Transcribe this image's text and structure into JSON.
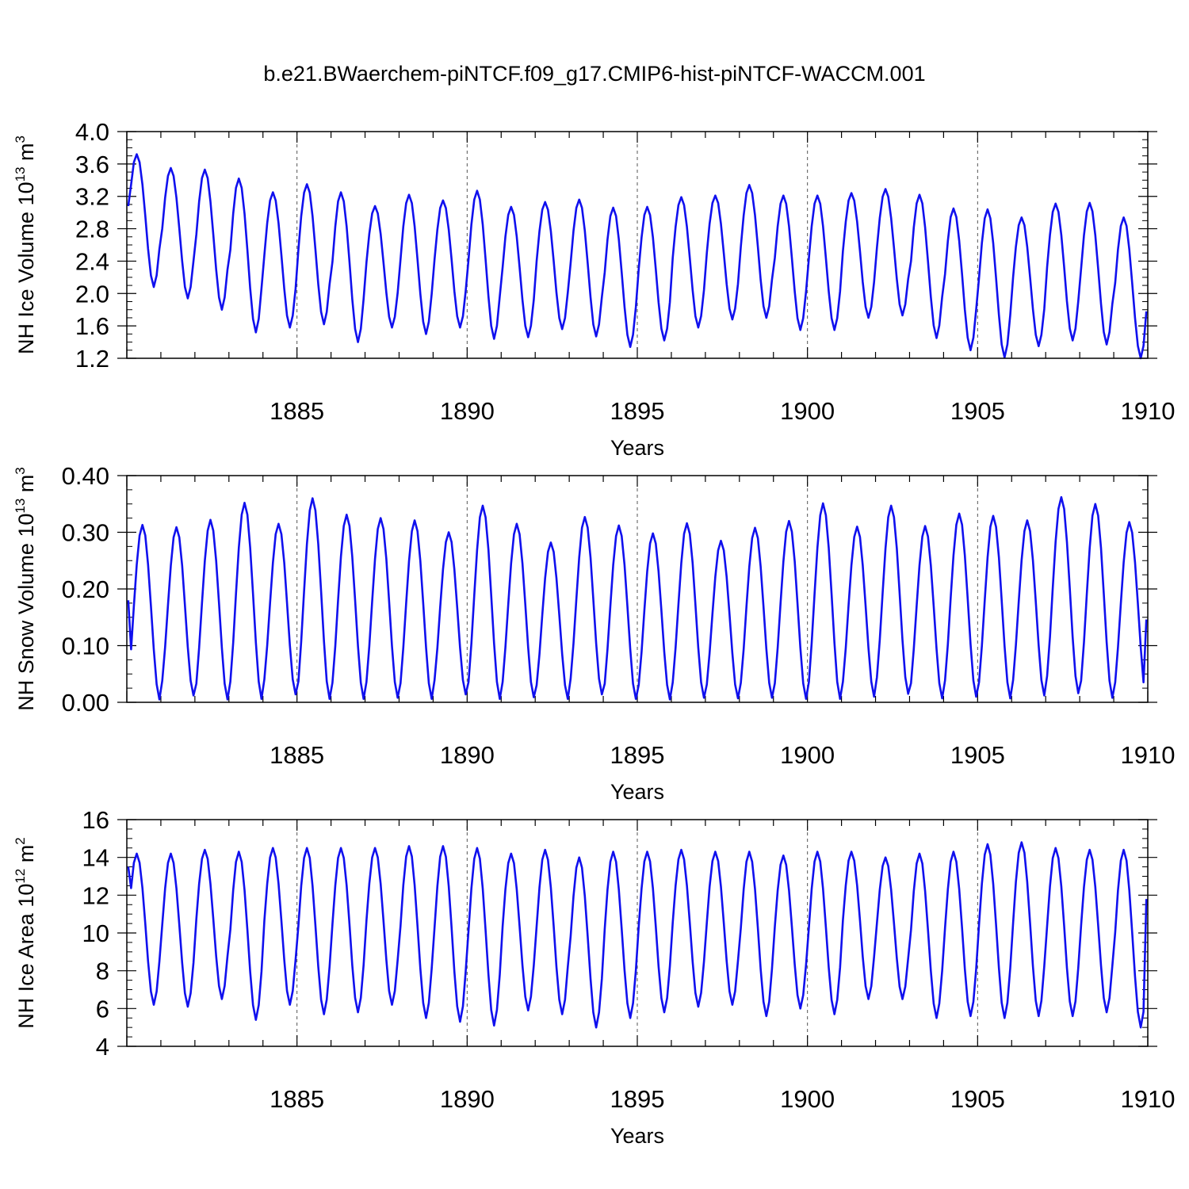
{
  "title": "b.e21.BWaerchem-piNTCF.f09_g17.CMIP6-hist-piNTCF-WACCM.001",
  "colors": {
    "line": "#1010ee",
    "axis": "#000000",
    "grid": "#555555"
  },
  "chart_data": [
    {
      "type": "line",
      "name": "nh-ice-volume",
      "ylabel": {
        "base": "NH Ice Volume 10",
        "exp": "13",
        "unit": " m",
        "unitexp": "3"
      },
      "xlabel": "Years",
      "xlim": [
        1880.0,
        1910.0
      ],
      "ylim": [
        1.2,
        4.0
      ],
      "yticks": [
        "1.2",
        "1.6",
        "2.0",
        "2.4",
        "2.8",
        "3.2",
        "3.6",
        "4.0"
      ],
      "xticks": [
        "1885",
        "1890",
        "1895",
        "1900",
        "1905",
        "1910"
      ],
      "xtick_values": [
        1885,
        1890,
        1895,
        1900,
        1905,
        1910
      ],
      "year_maxima": [
        3.72,
        3.55,
        3.53,
        3.42,
        3.25,
        3.35,
        3.25,
        3.08,
        3.22,
        3.15,
        3.27,
        3.07,
        3.13,
        3.16,
        3.06,
        3.07,
        3.19,
        3.21,
        3.34,
        3.21,
        3.21,
        3.24,
        3.29,
        3.22,
        3.05,
        3.04,
        2.94,
        3.11,
        3.12,
        2.94
      ],
      "year_minima": [
        2.08,
        1.94,
        1.8,
        1.52,
        1.58,
        1.62,
        1.4,
        1.58,
        1.5,
        1.58,
        1.44,
        1.46,
        1.56,
        1.47,
        1.34,
        1.42,
        1.58,
        1.68,
        1.7,
        1.55,
        1.55,
        1.7,
        1.73,
        1.45,
        1.3,
        1.21,
        1.35,
        1.42,
        1.37,
        1.2
      ],
      "start_value": 3.08,
      "end_value": 1.78,
      "peak_month": 3,
      "trough_month": 9
    },
    {
      "type": "line",
      "name": "nh-snow-volume",
      "ylabel": {
        "base": "NH Snow Volume 10",
        "exp": "13",
        "unit": " m",
        "unitexp": "3"
      },
      "xlabel": "Years",
      "xlim": [
        1880.0,
        1910.0
      ],
      "ylim": [
        0.0,
        0.4
      ],
      "yticks": [
        "0.00",
        "0.10",
        "0.20",
        "0.30",
        "0.40"
      ],
      "xticks": [
        "1885",
        "1890",
        "1895",
        "1900",
        "1905",
        "1910"
      ],
      "xtick_values": [
        1885,
        1890,
        1895,
        1900,
        1905,
        1910
      ],
      "year_maxima": [
        0.313,
        0.309,
        0.322,
        0.352,
        0.315,
        0.36,
        0.331,
        0.325,
        0.321,
        0.3,
        0.347,
        0.315,
        0.282,
        0.327,
        0.312,
        0.298,
        0.316,
        0.285,
        0.308,
        0.32,
        0.351,
        0.31,
        0.347,
        0.311,
        0.333,
        0.329,
        0.321,
        0.362,
        0.35,
        0.318
      ],
      "year_minima": [
        0.005,
        0.012,
        0.005,
        0.006,
        0.014,
        0.006,
        0.006,
        0.008,
        0.006,
        0.014,
        0.006,
        0.009,
        0.006,
        0.014,
        0.006,
        0.005,
        0.008,
        0.007,
        0.008,
        0.006,
        0.006,
        0.01,
        0.015,
        0.007,
        0.01,
        0.007,
        0.012,
        0.016,
        0.008,
        0.008
      ],
      "start_value": 0.18,
      "end_value": 0.146,
      "peak_month": 5,
      "trough_month": 8
    },
    {
      "type": "line",
      "name": "nh-ice-area",
      "ylabel": {
        "base": "NH Ice Area 10",
        "exp": "12",
        "unit": " m",
        "unitexp": "2"
      },
      "xlabel": "Years",
      "xlim": [
        1880.0,
        1910.0
      ],
      "ylim": [
        4,
        16
      ],
      "yticks": [
        "4",
        "6",
        "8",
        "10",
        "12",
        "14",
        "16"
      ],
      "xticks": [
        "1885",
        "1890",
        "1895",
        "1900",
        "1905",
        "1910"
      ],
      "xtick_values": [
        1885,
        1890,
        1895,
        1900,
        1905,
        1910
      ],
      "year_maxima": [
        14.2,
        14.2,
        14.4,
        14.3,
        14.5,
        14.5,
        14.5,
        14.5,
        14.6,
        14.6,
        14.5,
        14.2,
        14.4,
        14.0,
        14.3,
        14.3,
        14.4,
        14.3,
        14.3,
        14.1,
        14.3,
        14.3,
        14.0,
        14.2,
        14.3,
        14.7,
        14.8,
        14.5,
        14.4,
        14.4
      ],
      "year_minima": [
        6.2,
        6.1,
        6.5,
        5.4,
        6.2,
        5.7,
        5.8,
        6.2,
        5.5,
        5.3,
        5.1,
        5.9,
        5.7,
        5.0,
        5.5,
        5.8,
        6.1,
        6.2,
        5.6,
        6.0,
        5.7,
        6.5,
        6.5,
        5.5,
        5.6,
        5.5,
        5.6,
        5.6,
        5.8,
        5.0
      ],
      "start_value": 13.5,
      "end_value": 11.8,
      "peak_month": 3,
      "trough_month": 9
    }
  ]
}
